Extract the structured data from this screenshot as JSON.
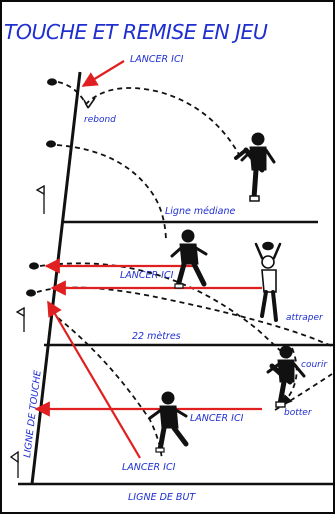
{
  "diagram": {
    "title": "TOUCHE ET REMISE EN JEU",
    "labels": {
      "lancer_ici_top": "LANCER ICI",
      "rebond": "rebond",
      "ligne_mediane": "Ligne médiane",
      "lancer_ici_middle": "LANCER ICI",
      "attraper": "attraper",
      "vingt_deux_metres": "22 mètres",
      "courir": "courir",
      "ligne_de_touche": "LIGNE DE TOUCHE",
      "lancer_ici_lower": "LANCER ICI",
      "botter": "botter",
      "lancer_ici_bottom": "LANCER ICI",
      "ligne_de_but": "LIGNE DE BUT"
    },
    "colors": {
      "text": "#1f2fd0",
      "arrow": "#e02020",
      "line": "#111111",
      "border": "#0a0a0a"
    }
  }
}
